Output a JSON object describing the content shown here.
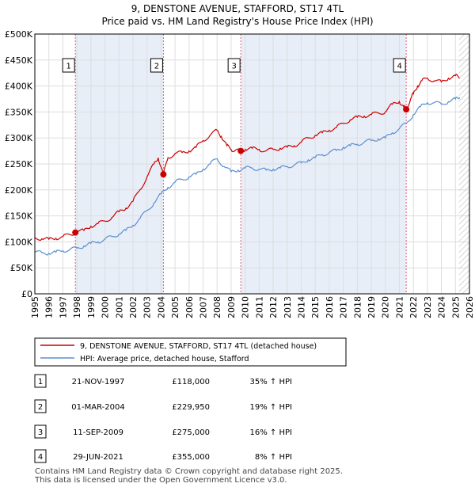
{
  "title_line1": "9, DENSTONE AVENUE, STAFFORD, ST17 4TL",
  "title_line2": "Price paid vs. HM Land Registry's House Price Index (HPI)",
  "footer_line1": "Contains HM Land Registry data © Crown copyright and database right 2025.",
  "footer_line2": "This data is licensed under the Open Government Licence v3.0.",
  "colors": {
    "property": "#cc0000",
    "hpi": "#5b8fd0",
    "grid": "#dddddd",
    "shade": "#e8eef8",
    "marker_line": "#e06070",
    "hatch": "#bbbbbb"
  },
  "chart_data": {
    "type": "line",
    "title": "9, DENSTONE AVENUE, STAFFORD, ST17 4TL — Price paid vs. HM Land Registry's House Price Index (HPI)",
    "xlim": [
      1995,
      2026
    ],
    "ylim": [
      0,
      500000
    ],
    "x_ticks": [
      "1995",
      "1996",
      "1997",
      "1998",
      "1999",
      "2000",
      "2001",
      "2002",
      "2003",
      "2004",
      "2005",
      "2006",
      "2007",
      "2008",
      "2009",
      "2010",
      "2011",
      "2012",
      "2013",
      "2014",
      "2015",
      "2016",
      "2017",
      "2018",
      "2019",
      "2020",
      "2021",
      "2022",
      "2023",
      "2024",
      "2025",
      "2026"
    ],
    "y_ticks": [
      {
        "value": 0,
        "label": "£0"
      },
      {
        "value": 50000,
        "label": "£50K"
      },
      {
        "value": 100000,
        "label": "£100K"
      },
      {
        "value": 150000,
        "label": "£150K"
      },
      {
        "value": 200000,
        "label": "£200K"
      },
      {
        "value": 250000,
        "label": "£250K"
      },
      {
        "value": 300000,
        "label": "£300K"
      },
      {
        "value": 350000,
        "label": "£350K"
      },
      {
        "value": 400000,
        "label": "£400K"
      },
      {
        "value": 450000,
        "label": "£450K"
      },
      {
        "value": 500000,
        "label": "£500K"
      }
    ],
    "hatch_from_year": 2025.25,
    "series": [
      {
        "name": "9, DENSTONE AVENUE, STAFFORD, ST17 4TL (detached house)",
        "color": "#cc0000",
        "x": [
          1995,
          1995.5,
          1996,
          1996.5,
          1997,
          1997.5,
          1997.9,
          1998.5,
          1999,
          1999.5,
          2000,
          2000.5,
          2001,
          2001.5,
          2002,
          2002.5,
          2003,
          2003.5,
          2003.8,
          2004.17,
          2004.5,
          2005,
          2005.5,
          2006,
          2006.5,
          2007,
          2007.5,
          2008,
          2008.3,
          2008.7,
          2009,
          2009.3,
          2009.7,
          2010,
          2010.5,
          2011,
          2011.5,
          2012,
          2012.5,
          2013,
          2013.5,
          2014,
          2014.5,
          2015,
          2015.5,
          2016,
          2016.5,
          2017,
          2017.5,
          2018,
          2018.5,
          2019,
          2019.5,
          2020,
          2020.5,
          2021,
          2021.3,
          2021.49,
          2021.8,
          2022,
          2022.3,
          2022.6,
          2023,
          2023.5,
          2024,
          2024.5,
          2025,
          2025.3
        ],
        "values": [
          108000,
          106000,
          105000,
          107000,
          110000,
          114000,
          118000,
          122000,
          130000,
          135000,
          140000,
          147000,
          158000,
          165000,
          178000,
          200000,
          225000,
          250000,
          262000,
          229950,
          262000,
          270000,
          272000,
          275000,
          282000,
          295000,
          305000,
          315000,
          303000,
          285000,
          278000,
          276000,
          275000,
          278000,
          280000,
          278000,
          275000,
          278000,
          280000,
          282000,
          285000,
          292000,
          300000,
          305000,
          310000,
          315000,
          320000,
          328000,
          335000,
          340000,
          342000,
          345000,
          348000,
          350000,
          365000,
          370000,
          360000,
          355000,
          375000,
          385000,
          400000,
          410000,
          415000,
          410000,
          408000,
          415000,
          420000,
          415000
        ]
      },
      {
        "name": "HPI: Average price, detached house, Stafford",
        "color": "#5b8fd0",
        "x": [
          1995,
          1995.5,
          1996,
          1996.5,
          1997,
          1997.5,
          1998,
          1998.5,
          1999,
          1999.5,
          2000,
          2000.5,
          2001,
          2001.5,
          2002,
          2002.5,
          2003,
          2003.5,
          2004,
          2004.5,
          2005,
          2005.5,
          2006,
          2006.5,
          2007,
          2007.5,
          2008,
          2008.5,
          2009,
          2009.5,
          2010,
          2010.5,
          2011,
          2011.5,
          2012,
          2012.5,
          2013,
          2013.5,
          2014,
          2014.5,
          2015,
          2015.5,
          2016,
          2016.5,
          2017,
          2017.5,
          2018,
          2018.5,
          2019,
          2019.5,
          2020,
          2020.5,
          2021,
          2021.5,
          2022,
          2022.5,
          2023,
          2023.5,
          2024,
          2024.5,
          2025,
          2025.3
        ],
        "values": [
          80000,
          79000,
          78000,
          80000,
          83000,
          85000,
          88000,
          92000,
          97000,
          100000,
          105000,
          110000,
          115000,
          122000,
          132000,
          145000,
          160000,
          175000,
          192000,
          205000,
          215000,
          220000,
          225000,
          230000,
          240000,
          250000,
          260000,
          245000,
          235000,
          238000,
          242000,
          242000,
          240000,
          238000,
          240000,
          242000,
          245000,
          248000,
          252000,
          258000,
          262000,
          268000,
          272000,
          276000,
          282000,
          285000,
          288000,
          292000,
          295000,
          298000,
          300000,
          310000,
          318000,
          328000,
          345000,
          360000,
          368000,
          368000,
          365000,
          370000,
          375000,
          378000
        ]
      }
    ],
    "sales": [
      {
        "num": "1",
        "date": "21-NOV-1997",
        "price": "£118,000",
        "hpi": "35% ↑ HPI",
        "x": 1997.89,
        "y": 118000
      },
      {
        "num": "2",
        "date": "01-MAR-2004",
        "price": "£229,950",
        "hpi": "19% ↑ HPI",
        "x": 2004.17,
        "y": 229950
      },
      {
        "num": "3",
        "date": "11-SEP-2009",
        "price": "£275,000",
        "hpi": "16% ↑ HPI",
        "x": 2009.69,
        "y": 275000
      },
      {
        "num": "4",
        "date": "29-JUN-2021",
        "price": "£355,000",
        "hpi": "8% ↑ HPI",
        "x": 2021.49,
        "y": 355000
      }
    ]
  }
}
